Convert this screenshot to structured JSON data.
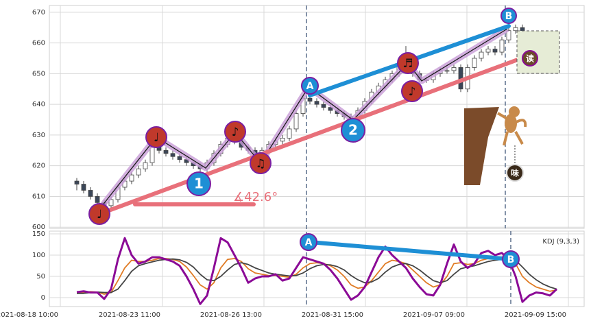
{
  "chart_data": [
    {
      "type": "candlestick",
      "ylim": [
        599.6,
        672.2
      ],
      "yticks": [
        600,
        610,
        620,
        630,
        640,
        650,
        660,
        670
      ],
      "up_color": "#ffffff",
      "down_color": "#3b4658",
      "edge_color": "#444444",
      "grid": true,
      "open": [
        615,
        614,
        612,
        610,
        608,
        607,
        609,
        613,
        615,
        617,
        619,
        621,
        626,
        625,
        624,
        623,
        622,
        621,
        620,
        619,
        621,
        624,
        627,
        629,
        628,
        626,
        625,
        624,
        625,
        627,
        628,
        629,
        632,
        637,
        642,
        641,
        640,
        639,
        638,
        637,
        636,
        635,
        638,
        641,
        644,
        646,
        648,
        650,
        653,
        655,
        650,
        648,
        648,
        650,
        651,
        651,
        652,
        645,
        652,
        655,
        657,
        658,
        657,
        661,
        664,
        665,
        660,
        657,
        655,
        656,
        655
      ],
      "high": [
        616,
        615,
        613,
        611,
        609,
        610,
        614,
        616,
        618,
        620,
        622,
        627,
        627,
        626,
        625,
        624,
        623,
        622,
        621,
        622,
        625,
        628,
        630,
        630,
        629,
        627,
        626,
        626,
        628,
        629,
        630,
        633,
        638,
        643,
        643,
        642,
        641,
        640,
        639,
        638,
        637,
        639,
        642,
        645,
        647,
        649,
        651,
        654,
        659,
        656,
        651,
        649,
        651,
        652,
        652,
        653,
        653,
        653,
        656,
        658,
        659,
        659,
        662,
        667,
        666,
        666,
        661,
        658,
        657,
        657,
        656
      ],
      "low": [
        612,
        611,
        609,
        607,
        606,
        606,
        608,
        612,
        614,
        616,
        618,
        620,
        624,
        623,
        622,
        621,
        620,
        619,
        618,
        618,
        620,
        623,
        626,
        627,
        625,
        624,
        623,
        623,
        624,
        626,
        627,
        628,
        631,
        636,
        640,
        639,
        638,
        637,
        636,
        635,
        634,
        634,
        637,
        640,
        643,
        645,
        647,
        649,
        652,
        649,
        647,
        647,
        647,
        649,
        650,
        650,
        644,
        644,
        651,
        654,
        656,
        656,
        656,
        660,
        663,
        659,
        656,
        654,
        654,
        654,
        653
      ],
      "close": [
        614,
        612,
        610,
        608,
        607,
        609,
        613,
        615,
        617,
        619,
        621,
        626,
        625,
        624,
        623,
        622,
        621,
        620,
        619,
        621,
        624,
        627,
        629,
        628,
        626,
        625,
        624,
        625,
        627,
        628,
        629,
        632,
        637,
        642,
        641,
        640,
        639,
        638,
        637,
        636,
        635,
        638,
        641,
        644,
        646,
        648,
        650,
        653,
        655,
        650,
        648,
        648,
        650,
        651,
        651,
        652,
        645,
        652,
        655,
        657,
        658,
        657,
        661,
        664,
        665,
        660,
        657,
        655,
        656,
        655,
        654
      ],
      "annotations": [
        "♩",
        "♩",
        "♪",
        "♫",
        "♬",
        "♪",
        "1",
        "2",
        "A",
        "B",
        "∡42.6°",
        "读",
        "味"
      ]
    },
    {
      "type": "line",
      "indicator_label": "KDJ (9,3,3)",
      "xlim": [
        -4,
        74
      ],
      "xticks": [
        {
          "value": -2.4,
          "label": "2021-08-18 10:00"
        },
        {
          "value": 12.5,
          "label": "2021-08-23 11:00"
        },
        {
          "value": 27.3,
          "label": "2021-08-26 13:00"
        },
        {
          "value": 42.1,
          "label": "2021-08-31 15:00"
        },
        {
          "value": 56.9,
          "label": "2021-09-07 09:00"
        },
        {
          "value": 71.7,
          "label": "2021-09-09 15:00"
        }
      ],
      "ylim": [
        -21,
        156.5
      ],
      "yticks": [
        0,
        50,
        100,
        150
      ],
      "grid": true,
      "series": [
        {
          "color": "#e07b24",
          "values": [
            10,
            12,
            14,
            13,
            8,
            12,
            40,
            70,
            88,
            85,
            85,
            88,
            92,
            92,
            90,
            85,
            72,
            52,
            30,
            20,
            35,
            70,
            90,
            92,
            85,
            68,
            58,
            55,
            52,
            52,
            50,
            48,
            55,
            70,
            80,
            82,
            80,
            75,
            65,
            50,
            30,
            22,
            25,
            40,
            60,
            80,
            88,
            85,
            80,
            65,
            50,
            35,
            25,
            30,
            50,
            80,
            82,
            78,
            80,
            88,
            92,
            92,
            95,
            92,
            80,
            50,
            35,
            25,
            20,
            15,
            18
          ]
        },
        {
          "color": "#444444",
          "values": [
            10,
            10,
            12,
            13,
            12,
            12,
            20,
            40,
            62,
            75,
            80,
            84,
            88,
            90,
            91,
            89,
            83,
            72,
            55,
            42,
            40,
            50,
            65,
            78,
            82,
            78,
            70,
            64,
            58,
            55,
            53,
            51,
            52,
            58,
            68,
            75,
            78,
            77,
            73,
            65,
            52,
            42,
            35,
            37,
            45,
            60,
            72,
            78,
            80,
            75,
            65,
            52,
            40,
            35,
            40,
            55,
            68,
            72,
            75,
            80,
            85,
            88,
            90,
            92,
            88,
            72,
            55,
            42,
            32,
            25,
            20
          ]
        },
        {
          "color": "#8b0a96",
          "values": [
            13,
            15,
            12,
            12,
            -3,
            20,
            90,
            140,
            100,
            80,
            85,
            95,
            95,
            90,
            85,
            75,
            50,
            20,
            -15,
            5,
            70,
            140,
            130,
            100,
            70,
            35,
            45,
            50,
            50,
            55,
            40,
            45,
            70,
            95,
            90,
            85,
            80,
            65,
            45,
            20,
            -5,
            5,
            25,
            60,
            95,
            120,
            100,
            85,
            70,
            45,
            25,
            8,
            5,
            30,
            80,
            125,
            85,
            70,
            80,
            105,
            110,
            100,
            105,
            90,
            50,
            -10,
            5,
            12,
            10,
            5,
            20
          ]
        }
      ],
      "annotations": [
        "A",
        "B"
      ]
    }
  ]
}
